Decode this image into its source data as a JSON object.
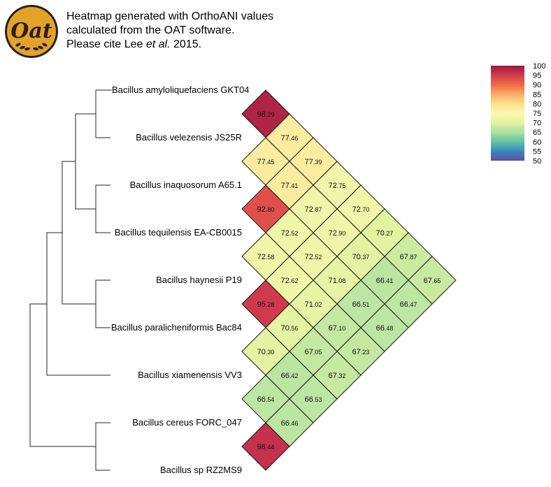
{
  "caption": {
    "line1": "Heatmap generated with OrthoANI values",
    "line2": "calculated from the OAT software.",
    "line3_pre": "Please cite Lee ",
    "line3_em": "et al.",
    "line3_post": " 2015."
  },
  "logo": {
    "text": "Oat",
    "icon": "oat-logo",
    "colors": {
      "ring": "#2a2018",
      "fill": "#e3a32a",
      "wheat": "#2a2018"
    }
  },
  "taxa": [
    "Bacillus amyloliquefaciens GKT04",
    "Bacillus velezensis JS25R",
    "Bacillus inaquosorum A65.1",
    "Bacillus tequilensis EA-CB0015",
    "Bacillus haynesii P19",
    "Bacillus paralicheniformis Bac84",
    "Bacillus xiamenensis VV3",
    "Bacillus cereus FORC_047",
    "Bacillus sp RZ2MS9"
  ],
  "matrix_values": [
    [
      null,
      98.29,
      77.46,
      77.39,
      72.75,
      72.7,
      70.27,
      67.87,
      67.65
    ],
    [
      null,
      null,
      77.45,
      77.41,
      72.87,
      72.9,
      70.37,
      66.41,
      66.47
    ],
    [
      null,
      null,
      null,
      92.8,
      72.52,
      72.52,
      71.08,
      66.51,
      66.48
    ],
    [
      null,
      null,
      null,
      null,
      72.58,
      72.62,
      71.02,
      67.1,
      67.23
    ],
    [
      null,
      null,
      null,
      null,
      null,
      95.28,
      70.56,
      67.05,
      67.32
    ],
    [
      null,
      null,
      null,
      null,
      null,
      null,
      70.3,
      66.42,
      66.53
    ],
    [
      null,
      null,
      null,
      null,
      null,
      null,
      null,
      66.54,
      66.46
    ],
    [
      null,
      null,
      null,
      null,
      null,
      null,
      null,
      null,
      96.44
    ]
  ],
  "color_scale": {
    "labels": [
      "100",
      "95",
      "90",
      "85",
      "80",
      "75",
      "70",
      "65",
      "60",
      "55",
      "50"
    ],
    "stops": [
      "#9e1742",
      "#d23c4e",
      "#ef6a45",
      "#fbad66",
      "#fde08d",
      "#fbf8b0",
      "#e1f3a0",
      "#ace0a1",
      "#64c2a5",
      "#3a88bc",
      "#5e4fa2"
    ]
  },
  "tree_linkage": [
    [
      0,
      1
    ],
    [
      2,
      3
    ],
    [
      9,
      10
    ],
    [
      4,
      5
    ],
    [
      11,
      12
    ],
    [
      13,
      6
    ],
    [
      7,
      8
    ],
    [
      14,
      15
    ]
  ]
}
